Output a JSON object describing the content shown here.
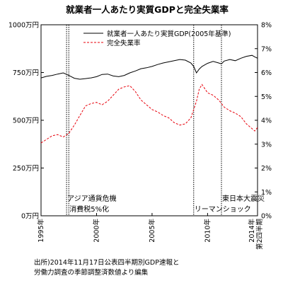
{
  "chart_data": {
    "type": "line",
    "title": "就業者一人あたり実質GDPと完全失業率",
    "x_ticks": [
      "1995年",
      "2000年",
      "2005年",
      "2010年",
      "2014年 第2四半期"
    ],
    "x_range": [
      1995.0,
      2014.5
    ],
    "y_left": {
      "ticks": [
        "0万円",
        "250万円",
        "500万円",
        "750万円",
        "1000万円"
      ],
      "range": [
        0,
        1000
      ]
    },
    "y_right": {
      "ticks": [
        "0%",
        "1%",
        "2%",
        "3%",
        "4%",
        "5%",
        "6%",
        "7%",
        "8%"
      ],
      "range": [
        0,
        8
      ]
    },
    "series": [
      {
        "name": "就業者一人あたり実質GDP(2005年基準)",
        "axis": "left",
        "color": "#000000",
        "style": "solid",
        "points": [
          [
            1995.0,
            722
          ],
          [
            1995.5,
            730
          ],
          [
            1996.0,
            735
          ],
          [
            1996.5,
            742
          ],
          [
            1997.0,
            748
          ],
          [
            1997.5,
            735
          ],
          [
            1998.0,
            720
          ],
          [
            1998.5,
            715
          ],
          [
            1999.0,
            718
          ],
          [
            1999.5,
            722
          ],
          [
            2000.0,
            728
          ],
          [
            2000.5,
            740
          ],
          [
            2001.0,
            742
          ],
          [
            2001.5,
            732
          ],
          [
            2002.0,
            728
          ],
          [
            2002.5,
            735
          ],
          [
            2003.0,
            748
          ],
          [
            2003.5,
            758
          ],
          [
            2004.0,
            770
          ],
          [
            2004.5,
            775
          ],
          [
            2005.0,
            782
          ],
          [
            2005.5,
            792
          ],
          [
            2006.0,
            800
          ],
          [
            2006.5,
            806
          ],
          [
            2007.0,
            812
          ],
          [
            2007.5,
            818
          ],
          [
            2008.0,
            815
          ],
          [
            2008.5,
            800
          ],
          [
            2008.75,
            782
          ],
          [
            2009.0,
            748
          ],
          [
            2009.25,
            768
          ],
          [
            2009.5,
            782
          ],
          [
            2010.0,
            798
          ],
          [
            2010.5,
            808
          ],
          [
            2011.0,
            800
          ],
          [
            2011.25,
            795
          ],
          [
            2011.5,
            810
          ],
          [
            2012.0,
            818
          ],
          [
            2012.5,
            812
          ],
          [
            2013.0,
            825
          ],
          [
            2013.5,
            835
          ],
          [
            2014.0,
            840
          ],
          [
            2014.25,
            832
          ],
          [
            2014.5,
            825
          ]
        ]
      },
      {
        "name": "完全失業率",
        "axis": "right",
        "color": "#e8000b",
        "style": "dashed",
        "points": [
          [
            1995.0,
            3.05
          ],
          [
            1995.5,
            3.2
          ],
          [
            1996.0,
            3.35
          ],
          [
            1996.5,
            3.4
          ],
          [
            1997.0,
            3.3
          ],
          [
            1997.5,
            3.45
          ],
          [
            1998.0,
            3.8
          ],
          [
            1998.5,
            4.2
          ],
          [
            1999.0,
            4.6
          ],
          [
            1999.5,
            4.7
          ],
          [
            2000.0,
            4.75
          ],
          [
            2000.5,
            4.65
          ],
          [
            2001.0,
            4.8
          ],
          [
            2001.5,
            5.05
          ],
          [
            2002.0,
            5.3
          ],
          [
            2002.5,
            5.4
          ],
          [
            2003.0,
            5.45
          ],
          [
            2003.5,
            5.2
          ],
          [
            2004.0,
            4.85
          ],
          [
            2004.5,
            4.65
          ],
          [
            2005.0,
            4.45
          ],
          [
            2005.5,
            4.35
          ],
          [
            2006.0,
            4.2
          ],
          [
            2006.5,
            4.1
          ],
          [
            2007.0,
            3.9
          ],
          [
            2007.5,
            3.8
          ],
          [
            2008.0,
            3.85
          ],
          [
            2008.5,
            4.1
          ],
          [
            2009.0,
            4.8
          ],
          [
            2009.25,
            5.3
          ],
          [
            2009.5,
            5.5
          ],
          [
            2010.0,
            5.15
          ],
          [
            2010.5,
            5.05
          ],
          [
            2011.0,
            4.85
          ],
          [
            2011.5,
            4.55
          ],
          [
            2012.0,
            4.4
          ],
          [
            2012.5,
            4.3
          ],
          [
            2013.0,
            4.15
          ],
          [
            2013.5,
            3.85
          ],
          [
            2014.0,
            3.65
          ],
          [
            2014.25,
            3.55
          ],
          [
            2014.5,
            3.7
          ]
        ]
      }
    ],
    "events": [
      {
        "x": 1997.3,
        "label": "アジア通貨危機"
      },
      {
        "x": 1997.5,
        "label": "消費税5%化"
      },
      {
        "x": 2008.75,
        "label": "リーマンショック"
      },
      {
        "x": 2011.25,
        "label": "東日本大震災"
      }
    ],
    "legend": "top-right",
    "grid": false
  },
  "source_note": [
    "出所)2014年11月17日公表四半期別GDP速報と",
    "労働力調査の季節調整済数値より編集"
  ]
}
